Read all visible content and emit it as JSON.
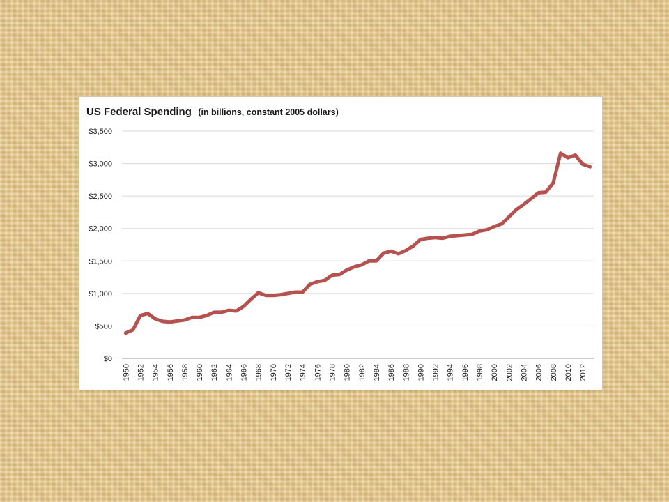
{
  "slide": {
    "background": "#e6c98f"
  },
  "chart_data": {
    "type": "line",
    "title": "US Federal Spending",
    "subtitle": "(in billions, constant 2005 dollars)",
    "xlabel": "",
    "ylabel": "",
    "ylim": [
      0,
      3500
    ],
    "yticks": [
      0,
      500,
      1000,
      1500,
      2000,
      2500,
      3000,
      3500
    ],
    "ytick_labels": [
      "$0",
      "$500",
      "$1,000",
      "$1,500",
      "$2,000",
      "$2,500",
      "$3,000",
      "$3,500"
    ],
    "xlim": [
      1950,
      2013
    ],
    "xtick_labels": [
      "1950",
      "1952",
      "1954",
      "1956",
      "1958",
      "1960",
      "1962",
      "1964",
      "1966",
      "1968",
      "1970",
      "1972",
      "1974",
      "1976",
      "1978",
      "1980",
      "1982",
      "1984",
      "1986",
      "1988",
      "1990",
      "1992",
      "1994",
      "1996",
      "1998",
      "2000",
      "2002",
      "2004",
      "2006",
      "2008",
      "2010",
      "2012"
    ],
    "grid": "horizontal",
    "legend": "none",
    "line_color": "#b5524f",
    "x": [
      1950,
      1951,
      1952,
      1953,
      1954,
      1955,
      1956,
      1957,
      1958,
      1959,
      1960,
      1961,
      1962,
      1963,
      1964,
      1965,
      1966,
      1967,
      1968,
      1969,
      1970,
      1971,
      1972,
      1973,
      1974,
      1975,
      1976,
      1977,
      1978,
      1979,
      1980,
      1981,
      1982,
      1983,
      1984,
      1985,
      1986,
      1987,
      1988,
      1989,
      1990,
      1991,
      1992,
      1993,
      1994,
      1995,
      1996,
      1997,
      1998,
      1999,
      2000,
      2001,
      2002,
      2003,
      2004,
      2005,
      2006,
      2007,
      2008,
      2009,
      2010,
      2011,
      2012,
      2013
    ],
    "series": [
      {
        "values": [
          390,
          440,
          660,
          690,
          610,
          570,
          560,
          575,
          590,
          630,
          630,
          660,
          710,
          710,
          740,
          730,
          800,
          910,
          1010,
          970,
          970,
          980,
          1000,
          1020,
          1020,
          1140,
          1180,
          1200,
          1280,
          1290,
          1360,
          1410,
          1440,
          1500,
          1500,
          1620,
          1650,
          1610,
          1660,
          1730,
          1830,
          1850,
          1860,
          1850,
          1880,
          1890,
          1900,
          1910,
          1960,
          1980,
          2030,
          2070,
          2180,
          2290,
          2370,
          2460,
          2550,
          2560,
          2700,
          3160,
          3090,
          3130,
          2990,
          2950
        ]
      }
    ]
  }
}
